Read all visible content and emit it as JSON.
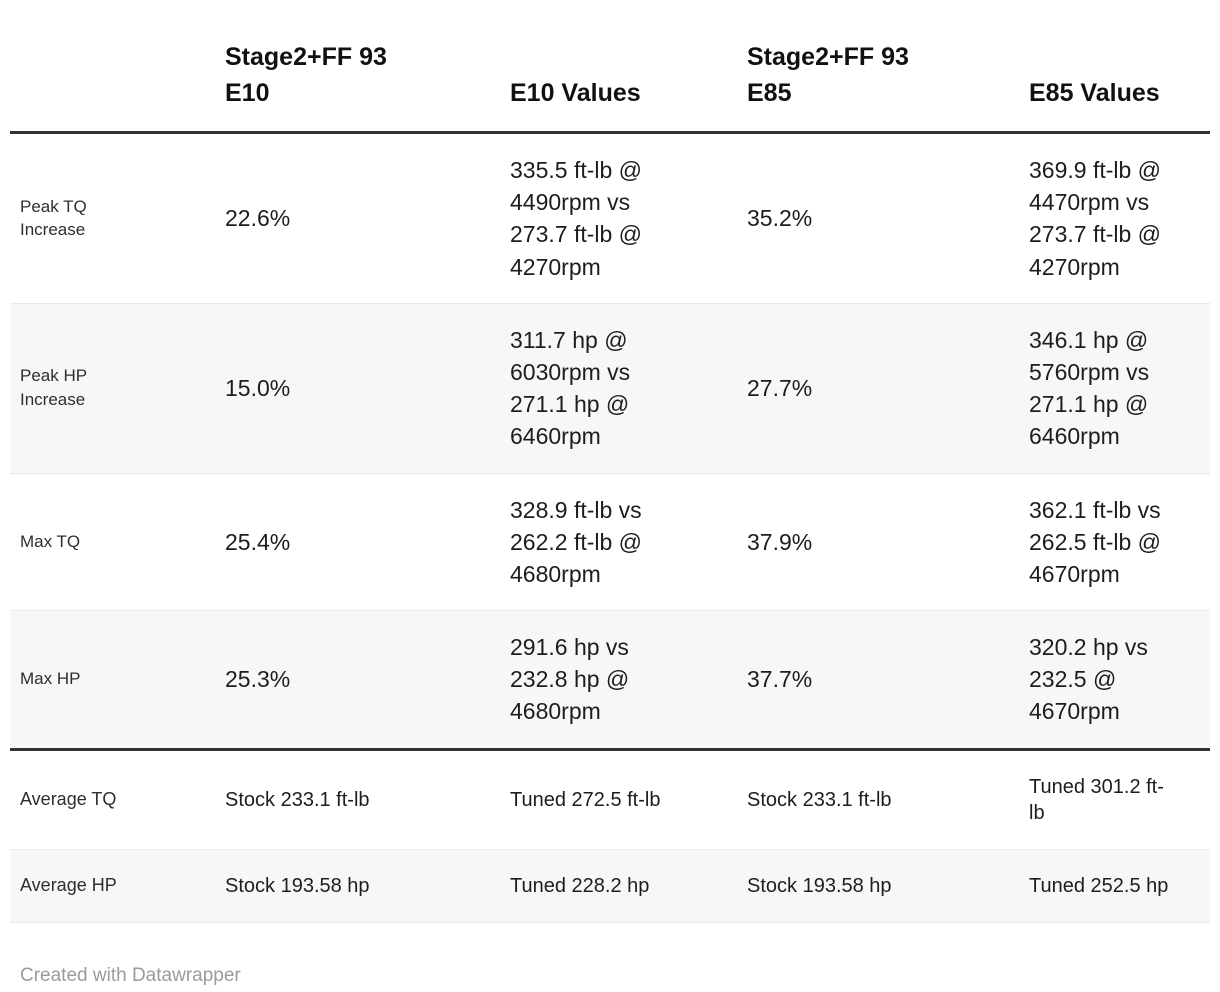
{
  "chart_data": {
    "type": "table",
    "columns": [
      "",
      "Stage2+FF 93\nE10",
      "E10 Values",
      "Stage2+FF 93\nE85",
      "E85 Values"
    ],
    "rows": [
      {
        "label": "Peak TQ\nIncrease",
        "cells": [
          "22.6%",
          "335.5 ft-lb @\n4490rpm vs\n273.7 ft-lb @\n4270rpm",
          "35.2%",
          "369.9 ft-lb @\n4470rpm vs\n273.7 ft-lb @\n4270rpm"
        ]
      },
      {
        "label": "Peak HP\nIncrease",
        "cells": [
          "15.0%",
          "311.7 hp @\n6030rpm vs\n271.1 hp @\n6460rpm",
          "27.7%",
          "346.1 hp @\n5760rpm vs\n271.1 hp @\n6460rpm"
        ]
      },
      {
        "label": "Max TQ",
        "cells": [
          "25.4%",
          "328.9 ft-lb vs\n262.2 ft-lb @\n4680rpm",
          "37.9%",
          "362.1 ft-lb vs\n262.5 ft-lb @\n4670rpm"
        ]
      },
      {
        "label": "Max HP",
        "cells": [
          "25.3%",
          "291.6 hp vs\n232.8 hp @\n4680rpm",
          "37.7%",
          "320.2 hp vs\n232.5 @\n4670rpm"
        ]
      },
      {
        "label": "Average TQ",
        "cells": [
          "Stock 233.1 ft-lb",
          "Tuned 272.5 ft-lb",
          "Stock 233.1 ft-lb",
          "Tuned 301.2 ft-\nlb"
        ]
      },
      {
        "label": "Average HP",
        "cells": [
          "Stock 193.58 hp",
          "Tuned 228.2 hp",
          "Stock 193.58 hp",
          "Tuned 252.5 hp"
        ]
      }
    ],
    "layout": {
      "striped_rows": "even",
      "header_rule": "thick",
      "summary_section_rule": "thick"
    }
  },
  "footer": {
    "attribution": "Created with Datawrapper"
  },
  "colors": {
    "background": "#ffffff",
    "header_border": "#333333",
    "row_stripe": "#f7f7f7",
    "row_divider": "#e9e9e9",
    "text": "#1d1d1d",
    "attribution_text": "#9b9b9b"
  }
}
